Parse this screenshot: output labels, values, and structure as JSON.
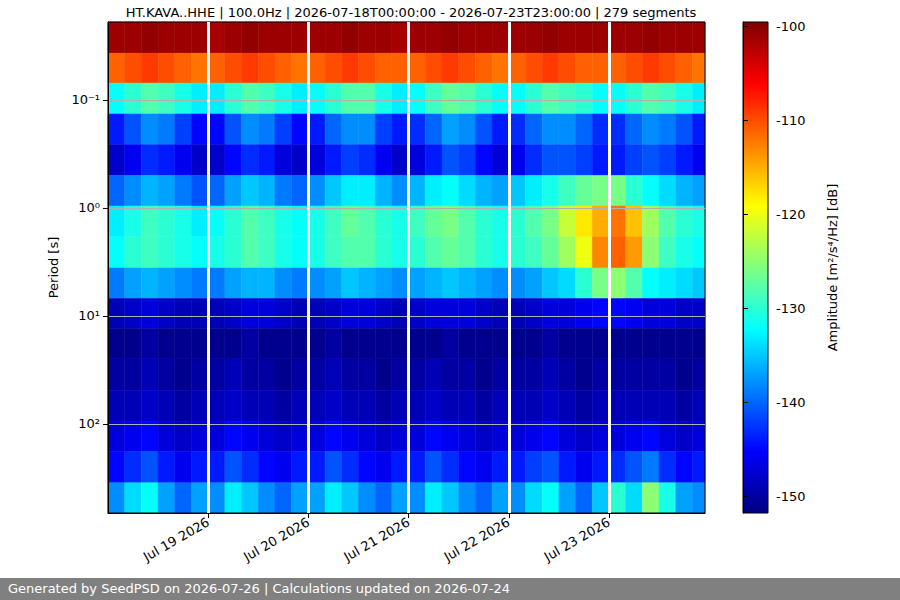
{
  "chart_data": {
    "type": "heatmap",
    "title": "HT.KAVA..HHE | 100.0Hz | 2026-07-18T00:00:00 - 2026-07-23T23:00:00 | 279 segments",
    "ylabel": "Period [s]",
    "footer": "Generated by SeedPSD on 2026-07-26 | Calculations updated on 2026-07-24",
    "log": "y",
    "grid": true,
    "xlim": [
      "2026-07-18T00:00:00",
      "2026-07-23T23:00:00"
    ],
    "xticks": [
      {
        "value": "2026-07-19T00:00:00",
        "label": "Jul 19 2026"
      },
      {
        "value": "2026-07-20T00:00:00",
        "label": "Jul 20 2026"
      },
      {
        "value": "2026-07-21T00:00:00",
        "label": "Jul 21 2026"
      },
      {
        "value": "2026-07-22T00:00:00",
        "label": "Jul 22 2026"
      },
      {
        "value": "2026-07-23T00:00:00",
        "label": "Jul 23 2026"
      }
    ],
    "ylim": [
      0.019,
      667
    ],
    "yticks": [
      {
        "value": 0.1,
        "label": "10⁻¹"
      },
      {
        "value": 1,
        "label": "10⁰"
      },
      {
        "value": 10,
        "label": "10¹"
      },
      {
        "value": 100,
        "label": "10²"
      }
    ],
    "time_edges": [
      "2026-07-18T00:00:00",
      "2026-07-18T04:00:00",
      "2026-07-18T08:00:00",
      "2026-07-18T12:00:00",
      "2026-07-18T16:00:00",
      "2026-07-18T20:00:00",
      "2026-07-19T00:00:00",
      "2026-07-19T04:00:00",
      "2026-07-19T08:00:00",
      "2026-07-19T12:00:00",
      "2026-07-19T16:00:00",
      "2026-07-19T20:00:00",
      "2026-07-20T00:00:00",
      "2026-07-20T04:00:00",
      "2026-07-20T08:00:00",
      "2026-07-20T12:00:00",
      "2026-07-20T16:00:00",
      "2026-07-20T20:00:00",
      "2026-07-21T00:00:00",
      "2026-07-21T04:00:00",
      "2026-07-21T08:00:00",
      "2026-07-21T12:00:00",
      "2026-07-21T16:00:00",
      "2026-07-21T20:00:00",
      "2026-07-22T00:00:00",
      "2026-07-22T04:00:00",
      "2026-07-22T08:00:00",
      "2026-07-22T12:00:00",
      "2026-07-22T16:00:00",
      "2026-07-22T20:00:00",
      "2026-07-23T00:00:00",
      "2026-07-23T04:00:00",
      "2026-07-23T08:00:00",
      "2026-07-23T12:00:00",
      "2026-07-23T16:00:00",
      "2026-07-23T20:00:00",
      "2026-07-23T23:00:00"
    ],
    "period_edges": [
      0.019,
      0.037,
      0.07,
      0.135,
      0.26,
      0.5,
      0.96,
      1.85,
      3.6,
      6.9,
      13,
      25,
      49,
      94,
      180,
      350,
      667
    ],
    "values": [
      [
        -101,
        -101,
        -100.5,
        -101,
        -101,
        -101,
        -101.5,
        -101,
        -100.5,
        -101,
        -101,
        -101,
        -101,
        -101,
        -100.5,
        -101,
        -101,
        -101.5,
        -101,
        -101,
        -100.5,
        -101,
        -101,
        -101,
        -101,
        -101,
        -100.5,
        -101,
        -101,
        -101,
        -101,
        -101,
        -100.5,
        -101,
        -101,
        -101
      ],
      [
        -111,
        -110,
        -109,
        -110,
        -111,
        -112,
        -111,
        -110,
        -109,
        -110,
        -111,
        -112,
        -111,
        -110,
        -109,
        -110,
        -111,
        -111,
        -111,
        -110,
        -109,
        -110,
        -111,
        -112,
        -111,
        -110,
        -109,
        -110,
        -111,
        -111,
        -111,
        -110,
        -109,
        -110,
        -111,
        -112
      ],
      [
        -132,
        -130,
        -128,
        -129,
        -131,
        -133,
        -133,
        -130,
        -128,
        -129,
        -131,
        -133,
        -132,
        -130,
        -128,
        -128,
        -131,
        -133,
        -132,
        -129,
        -127,
        -128,
        -130,
        -132,
        -132,
        -130,
        -128,
        -129,
        -130,
        -132,
        -132,
        -130,
        -128,
        -129,
        -131,
        -133
      ],
      [
        -144,
        -141,
        -138,
        -139,
        -142,
        -145,
        -145,
        -141,
        -138,
        -139,
        -142,
        -145,
        -144,
        -140,
        -138,
        -138,
        -142,
        -144,
        -143,
        -140,
        -137,
        -138,
        -141,
        -144,
        -143,
        -140,
        -138,
        -138,
        -140,
        -143,
        -143,
        -140,
        -138,
        -139,
        -141,
        -144
      ],
      [
        -148,
        -146,
        -143,
        -144,
        -146,
        -148,
        -148,
        -145,
        -143,
        -144,
        -147,
        -148,
        -147,
        -144,
        -142,
        -143,
        -146,
        -148,
        -147,
        -144,
        -141,
        -142,
        -145,
        -147,
        -146,
        -143,
        -141,
        -141,
        -142,
        -144,
        -144,
        -142,
        -141,
        -142,
        -144,
        -146
      ],
      [
        -140,
        -138,
        -136,
        -137,
        -139,
        -141,
        -140,
        -137,
        -135,
        -136,
        -139,
        -140,
        -138,
        -135,
        -133,
        -133,
        -136,
        -138,
        -136,
        -133,
        -132,
        -134,
        -136,
        -137,
        -135,
        -133,
        -131,
        -129,
        -127,
        -126,
        -126,
        -130,
        -132,
        -134,
        -136,
        -137
      ],
      [
        -133,
        -131,
        -129,
        -130,
        -131,
        -133,
        -132,
        -130,
        -128,
        -129,
        -131,
        -132,
        -131,
        -129,
        -127,
        -128,
        -130,
        -131,
        -129,
        -127,
        -126,
        -128,
        -130,
        -131,
        -130,
        -128,
        -126,
        -122,
        -118,
        -115,
        -112,
        -116,
        -124,
        -128,
        -130,
        -131
      ],
      [
        -132,
        -130,
        -129,
        -130,
        -131,
        -132,
        -131,
        -130,
        -128,
        -129,
        -131,
        -132,
        -131,
        -129,
        -128,
        -128,
        -130,
        -131,
        -130,
        -128,
        -127,
        -128,
        -130,
        -131,
        -130,
        -129,
        -127,
        -124,
        -120,
        -113,
        -111,
        -114,
        -125,
        -129,
        -131,
        -132
      ],
      [
        -139,
        -137,
        -136,
        -137,
        -138,
        -139,
        -139,
        -137,
        -136,
        -136,
        -138,
        -139,
        -138,
        -137,
        -135,
        -136,
        -137,
        -138,
        -137,
        -136,
        -135,
        -136,
        -137,
        -138,
        -138,
        -137,
        -135,
        -134,
        -130,
        -126,
        -125,
        -128,
        -132,
        -133,
        -134,
        -135
      ],
      [
        -149,
        -148,
        -147,
        -148,
        -149,
        -149,
        -149,
        -148,
        -147,
        -147,
        -148,
        -149,
        -149,
        -148,
        -147,
        -147,
        -148,
        -149,
        -148,
        -147,
        -147,
        -147,
        -148,
        -149,
        -149,
        -148,
        -147,
        -147,
        -146,
        -145,
        -145,
        -146,
        -147,
        -147,
        -148,
        -148
      ],
      [
        -151,
        -151,
        -150,
        -151,
        -151,
        -151,
        -151,
        -151,
        -150,
        -151,
        -151,
        -151,
        -151,
        -150,
        -151,
        -151,
        -151,
        -151,
        -151,
        -151,
        -150,
        -151,
        -151,
        -151,
        -151,
        -151,
        -150,
        -151,
        -151,
        -151,
        -151,
        -151,
        -151,
        -151,
        -151,
        -151
      ],
      [
        -150,
        -150,
        -149,
        -150,
        -151,
        -150,
        -150,
        -149,
        -150,
        -150,
        -151,
        -150,
        -150,
        -149,
        -150,
        -150,
        -151,
        -150,
        -150,
        -149,
        -150,
        -150,
        -151,
        -150,
        -150,
        -150,
        -149,
        -150,
        -151,
        -150,
        -150,
        -150,
        -150,
        -150,
        -151,
        -150
      ],
      [
        -149,
        -149,
        -148,
        -149,
        -150,
        -149,
        -149,
        -148,
        -149,
        -149,
        -150,
        -149,
        -149,
        -148,
        -149,
        -149,
        -150,
        -149,
        -149,
        -148,
        -149,
        -149,
        -150,
        -149,
        -149,
        -149,
        -148,
        -149,
        -150,
        -149,
        -149,
        -149,
        -149,
        -149,
        -150,
        -149
      ],
      [
        -147,
        -146,
        -145,
        -147,
        -148,
        -147,
        -147,
        -145,
        -146,
        -147,
        -148,
        -147,
        -147,
        -145,
        -146,
        -147,
        -148,
        -147,
        -147,
        -145,
        -146,
        -147,
        -148,
        -147,
        -147,
        -146,
        -145,
        -147,
        -148,
        -147,
        -147,
        -146,
        -145,
        -147,
        -148,
        -147
      ],
      [
        -145,
        -143,
        -141,
        -144,
        -146,
        -144,
        -144,
        -141,
        -143,
        -145,
        -146,
        -144,
        -144,
        -141,
        -143,
        -145,
        -146,
        -144,
        -144,
        -141,
        -143,
        -145,
        -146,
        -144,
        -144,
        -142,
        -141,
        -144,
        -146,
        -144,
        -143,
        -141,
        -139,
        -143,
        -145,
        -144
      ],
      [
        -138,
        -134,
        -132,
        -137,
        -140,
        -137,
        -138,
        -133,
        -135,
        -138,
        -140,
        -137,
        -137,
        -133,
        -135,
        -138,
        -140,
        -137,
        -138,
        -133,
        -135,
        -138,
        -140,
        -137,
        -138,
        -134,
        -132,
        -137,
        -140,
        -135,
        -130,
        -134,
        -125,
        -131,
        -137,
        -138
      ]
    ],
    "colorbar": {
      "label": "Amplitude [m²/s⁴/Hz] [dB]",
      "lim": [
        -151.8,
        -99.5
      ],
      "ticks": [
        -150,
        -140,
        -130,
        -120,
        -110,
        -100
      ]
    }
  }
}
